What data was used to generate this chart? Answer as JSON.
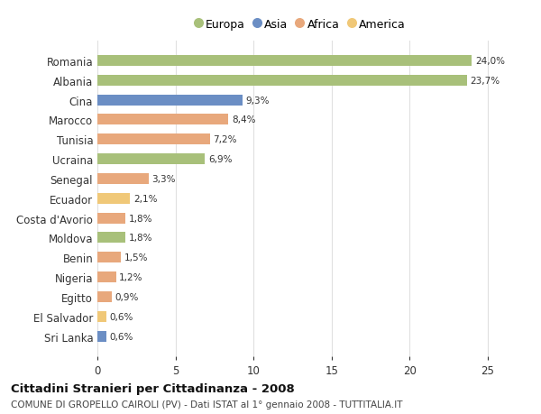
{
  "categories": [
    "Romania",
    "Albania",
    "Cina",
    "Marocco",
    "Tunisia",
    "Ucraina",
    "Senegal",
    "Ecuador",
    "Costa d'Avorio",
    "Moldova",
    "Benin",
    "Nigeria",
    "Egitto",
    "El Salvador",
    "Sri Lanka"
  ],
  "values": [
    24.0,
    23.7,
    9.3,
    8.4,
    7.2,
    6.9,
    3.3,
    2.1,
    1.8,
    1.8,
    1.5,
    1.2,
    0.9,
    0.6,
    0.6
  ],
  "labels": [
    "24,0%",
    "23,7%",
    "9,3%",
    "8,4%",
    "7,2%",
    "6,9%",
    "3,3%",
    "2,1%",
    "1,8%",
    "1,8%",
    "1,5%",
    "1,2%",
    "0,9%",
    "0,6%",
    "0,6%"
  ],
  "colors": [
    "#a8c07a",
    "#a8c07a",
    "#6b8ec4",
    "#e8a87c",
    "#e8a87c",
    "#a8c07a",
    "#e8a87c",
    "#f0c878",
    "#e8a87c",
    "#a8c07a",
    "#e8a87c",
    "#e8a87c",
    "#e8a87c",
    "#f0c878",
    "#6b8ec4"
  ],
  "continent": [
    "Europa",
    "Europa",
    "Asia",
    "Africa",
    "Africa",
    "Europa",
    "Africa",
    "America",
    "Africa",
    "Europa",
    "Africa",
    "Africa",
    "Africa",
    "America",
    "Asia"
  ],
  "legend_labels": [
    "Europa",
    "Asia",
    "Africa",
    "America"
  ],
  "legend_colors": [
    "#a8c07a",
    "#6b8ec4",
    "#e8a87c",
    "#f0c878"
  ],
  "title_main": "Cittadini Stranieri per Cittadinanza - 2008",
  "title_sub": "COMUNE DI GROPELLO CAIROLI (PV) - Dati ISTAT al 1° gennaio 2008 - TUTTITALIA.IT",
  "xlim": [
    0,
    26
  ],
  "xticks": [
    0,
    5,
    10,
    15,
    20,
    25
  ],
  "background_color": "#ffffff",
  "grid_color": "#e0e0e0"
}
